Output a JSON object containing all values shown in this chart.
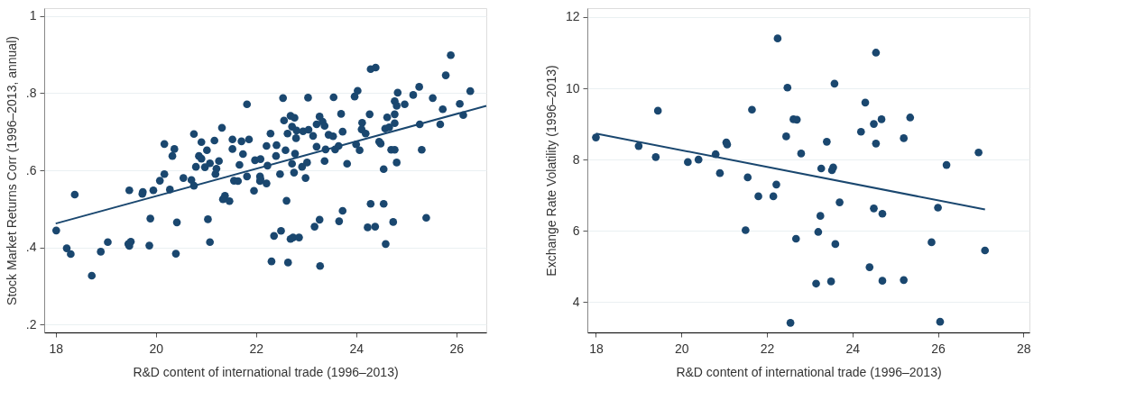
{
  "chart_data": [
    {
      "type": "scatter",
      "xlabel": "R&D content of international trade (1996–2013)",
      "ylabel": "Stock Market Returns Corr (1996–2013, annual)",
      "xlim": [
        17.77,
        26.6
      ],
      "xticks": [
        18,
        20,
        22,
        24,
        26
      ],
      "ylim": [
        0.18,
        1.02
      ],
      "yticks": [
        {
          "value": 0.2,
          "label": ".2"
        },
        {
          "value": 0.4,
          "label": ".4"
        },
        {
          "value": 0.6,
          "label": ".6"
        },
        {
          "value": 0.8,
          "label": ".8"
        },
        {
          "value": 1,
          "label": "1"
        }
      ],
      "grid": "y",
      "series": [
        {
          "marker": "circle",
          "color": "#1a476f",
          "x": [
            18.01,
            18.22,
            18.3,
            18.38,
            18.72,
            18.9,
            19.04,
            19.47,
            19.45,
            19.47,
            19.5,
            19.74,
            19.73,
            19.89,
            19.87,
            19.95,
            20.08,
            20.17,
            20.17,
            20.33,
            20.37,
            20.28,
            20.42,
            20.4,
            20.55,
            20.71,
            20.76,
            20.76,
            20.91,
            20.8,
            20.86,
            20.91,
            20.98,
            21.02,
            21.08,
            21.17,
            21.19,
            21.21,
            21.04,
            21.08,
            21.26,
            21.32,
            21.38,
            21.34,
            21.47,
            21.53,
            21.53,
            21.56,
            21.64,
            21.67,
            21.71,
            21.82,
            21.86,
            21.74,
            21.82,
            21.96,
            21.98,
            22.08,
            22.08,
            22.09,
            22.21,
            22.29,
            22.23,
            22.09,
            22.21,
            22.54,
            22.56,
            22.69,
            22.77,
            22.63,
            22.72,
            22.81,
            22.8,
            22.41,
            22.4,
            22.59,
            22.78,
            22.72,
            22.48,
            22.76,
            22.92,
            22.99,
            23.02,
            22.94,
            23.04,
            23.05,
            23.14,
            23.21,
            23.27,
            23.33,
            23.37,
            23.21,
            23.39,
            23.37,
            23.45,
            23.54,
            23.55,
            23.58,
            23.65,
            23.7,
            23.73,
            23.82,
            22.61,
            22.36,
            22.5,
            22.69,
            22.74,
            22.86,
            22.31,
            22.64,
            23.28,
            23.17,
            23.27,
            23.66,
            23.73,
            23.97,
            24.03,
            24.0,
            24.07,
            24.12,
            24.11,
            24.19,
            24.27,
            24.29,
            24.39,
            24.46,
            24.49,
            24.55,
            24.58,
            24.62,
            24.66,
            24.77,
            24.77,
            24.77,
            24.81,
            24.83,
            24.97,
            24.7,
            24.77,
            24.81,
            24.55,
            24.29,
            24.23,
            24.38,
            24.74,
            24.59,
            25.14,
            25.26,
            25.27,
            25.31,
            25.4,
            25.53,
            25.68,
            25.73,
            25.79,
            25.89,
            26.07,
            26.14,
            26.28
          ],
          "values": [
            0.444,
            0.398,
            0.383,
            0.537,
            0.327,
            0.389,
            0.414,
            0.548,
            0.409,
            0.404,
            0.415,
            0.544,
            0.539,
            0.475,
            0.405,
            0.548,
            0.573,
            0.59,
            0.668,
            0.637,
            0.655,
            0.55,
            0.465,
            0.384,
            0.58,
            0.575,
            0.56,
            0.694,
            0.673,
            0.609,
            0.637,
            0.63,
            0.608,
            0.652,
            0.618,
            0.677,
            0.59,
            0.604,
            0.473,
            0.414,
            0.624,
            0.71,
            0.534,
            0.525,
            0.52,
            0.68,
            0.655,
            0.573,
            0.572,
            0.614,
            0.675,
            0.771,
            0.68,
            0.642,
            0.584,
            0.547,
            0.626,
            0.584,
            0.572,
            0.629,
            0.663,
            0.695,
            0.612,
            0.577,
            0.566,
            0.787,
            0.729,
            0.741,
            0.736,
            0.695,
            0.713,
            0.703,
            0.683,
            0.665,
            0.637,
            0.652,
            0.643,
            0.617,
            0.59,
            0.594,
            0.609,
            0.58,
            0.62,
            0.701,
            0.788,
            0.705,
            0.689,
            0.719,
            0.739,
            0.726,
            0.715,
            0.661,
            0.654,
            0.624,
            0.692,
            0.688,
            0.789,
            0.654,
            0.663,
            0.746,
            0.7,
            0.617,
            0.521,
            0.43,
            0.443,
            0.422,
            0.426,
            0.426,
            0.364,
            0.361,
            0.352,
            0.454,
            0.472,
            0.468,
            0.495,
            0.791,
            0.806,
            0.667,
            0.652,
            0.723,
            0.706,
            0.695,
            0.745,
            0.862,
            0.866,
            0.674,
            0.669,
            0.603,
            0.708,
            0.737,
            0.711,
            0.722,
            0.745,
            0.779,
            0.767,
            0.801,
            0.771,
            0.653,
            0.653,
            0.62,
            0.513,
            0.513,
            0.452,
            0.454,
            0.466,
            0.409,
            0.795,
            0.816,
            0.719,
            0.653,
            0.477,
            0.787,
            0.719,
            0.758,
            0.846,
            0.898,
            0.772,
            0.743,
            0.805
          ]
        },
        {
          "type": "line",
          "color": "#1a476f",
          "x": [
            18.0,
            26.6
          ],
          "values": [
            0.462,
            0.767
          ]
        }
      ]
    },
    {
      "type": "scatter",
      "xlabel": "R&D content of international trade (1996–2013)",
      "ylabel": "Exchange Rate Volatility (1996–2013)",
      "xlim": [
        17.8,
        28.14
      ],
      "xticks": [
        18,
        20,
        22,
        24,
        26,
        28
      ],
      "ylim": [
        3.15,
        12.25
      ],
      "yticks": [
        4,
        6,
        8,
        10,
        12
      ],
      "grid": "y",
      "series": [
        {
          "marker": "circle",
          "color": "#1a476f",
          "x": [
            18.0,
            19.0,
            19.4,
            19.45,
            20.15,
            20.4,
            20.8,
            20.9,
            21.05,
            21.07,
            21.5,
            21.55,
            21.65,
            21.8,
            22.15,
            22.22,
            22.25,
            22.45,
            22.48,
            22.55,
            22.62,
            22.7,
            22.68,
            22.8,
            23.15,
            23.2,
            23.25,
            23.27,
            23.4,
            23.5,
            23.52,
            23.55,
            23.58,
            23.6,
            23.7,
            24.2,
            24.3,
            24.4,
            24.5,
            24.5,
            24.55,
            24.55,
            24.68,
            24.7,
            24.7,
            25.2,
            25.2,
            25.35,
            25.85,
            26.0,
            26.05,
            26.2,
            26.95,
            27.1
          ],
          "values": [
            8.62,
            8.38,
            8.07,
            9.37,
            7.93,
            8.0,
            8.15,
            7.62,
            8.48,
            8.42,
            6.02,
            7.5,
            9.4,
            6.97,
            6.97,
            7.3,
            11.4,
            8.65,
            10.02,
            3.42,
            9.13,
            9.12,
            5.78,
            8.17,
            4.52,
            5.97,
            6.42,
            7.75,
            8.5,
            4.58,
            7.7,
            7.78,
            10.13,
            5.63,
            6.8,
            8.78,
            9.6,
            4.98,
            6.63,
            9.0,
            11.0,
            8.45,
            9.13,
            6.48,
            4.6,
            8.6,
            4.62,
            9.18,
            5.68,
            6.65,
            3.45,
            7.85,
            8.2,
            5.45
          ]
        },
        {
          "type": "line",
          "color": "#1a476f",
          "x": [
            18.0,
            27.1
          ],
          "values": [
            8.73,
            6.6
          ]
        }
      ]
    }
  ]
}
